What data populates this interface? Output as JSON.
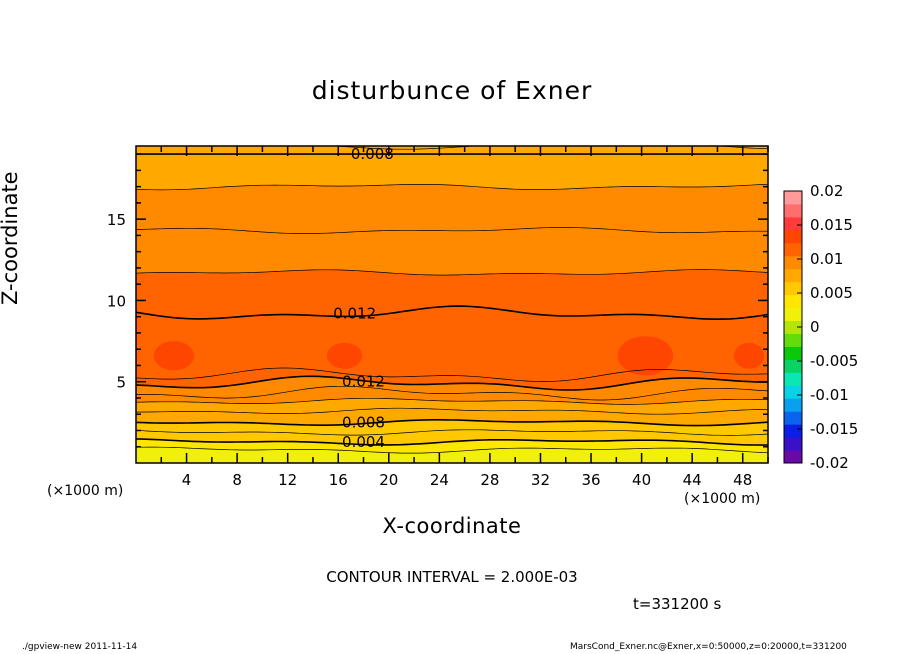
{
  "chart_data": {
    "type": "heatmap",
    "subtype": "filled-contour",
    "title": "disturbunce of Exner",
    "xlabel": "X-coordinate",
    "ylabel": "Z-coordinate",
    "x_unit_left": "(×1000 m)",
    "x_unit_right": "(×1000 m)",
    "xlim": [
      0,
      50
    ],
    "ylim": [
      0,
      19.5
    ],
    "x_tick_labels": [
      "4",
      "8",
      "12",
      "16",
      "20",
      "24",
      "28",
      "32",
      "36",
      "40",
      "44",
      "48"
    ],
    "x_ticks": [
      4,
      8,
      12,
      16,
      20,
      24,
      28,
      32,
      36,
      40,
      44,
      48
    ],
    "y_tick_labels": [
      "5",
      "10",
      "15"
    ],
    "y_ticks": [
      5,
      10,
      15
    ],
    "colorbar": {
      "range": [
        -0.02,
        0.02
      ],
      "tick_labels": [
        "0.02",
        "0.015",
        "0.01",
        "0.005",
        "0",
        "-0.005",
        "-0.01",
        "-0.015",
        "-0.02"
      ],
      "tick_values": [
        0.02,
        0.015,
        0.01,
        0.005,
        0,
        -0.005,
        -0.01,
        -0.015,
        -0.02
      ],
      "colors_low_to_high": [
        "#6a0aa6",
        "#3a10c8",
        "#0a1ee6",
        "#0a64f0",
        "#0aa0f0",
        "#0ad2e6",
        "#0ae6b4",
        "#0ad264",
        "#0ac80a",
        "#64dc0a",
        "#b4e60a",
        "#f0f00a",
        "#ffe600",
        "#ffc800",
        "#ffa800",
        "#ff8a00",
        "#ff6400",
        "#ff4600",
        "#ff3c3c",
        "#ff6e6e",
        "#ff9a9a"
      ]
    },
    "contour_levels_labeled": [
      {
        "label": "0.008",
        "value": 0.008
      },
      {
        "label": "0.012",
        "value": 0.012
      },
      {
        "label": "0.012",
        "value": 0.012
      },
      {
        "label": "0.008",
        "value": 0.008
      },
      {
        "label": "0.004",
        "value": 0.004
      }
    ],
    "contour_interval": 0.002,
    "bands_bottom_to_top": [
      {
        "z_top": 0.8,
        "value": 0.002
      },
      {
        "z_top": 1.3,
        "value": 0.004
      },
      {
        "z_top": 1.9,
        "value": 0.005
      },
      {
        "z_top": 2.5,
        "value": 0.006
      },
      {
        "z_top": 3.2,
        "value": 0.007
      },
      {
        "z_top": 3.8,
        "value": 0.008
      },
      {
        "z_top": 4.3,
        "value": 0.009
      },
      {
        "z_top": 4.9,
        "value": 0.01
      },
      {
        "z_top": 5.4,
        "value": 0.011
      },
      {
        "z_top": 9.2,
        "value": 0.012
      },
      {
        "z_top": 11.7,
        "value": 0.011
      },
      {
        "z_top": 14.3,
        "value": 0.01
      },
      {
        "z_top": 17.0,
        "value": 0.009
      },
      {
        "z_top": 19.5,
        "value": 0.008
      }
    ]
  },
  "interval_text": "CONTOUR INTERVAL = 2.000E-03",
  "time_text": "t=331200 s",
  "footer_left": "./gpview-new   2011-11-14",
  "footer_right": "MarsCond_Exner.nc@Exner,x=0:50000,z=0:20000,t=331200"
}
